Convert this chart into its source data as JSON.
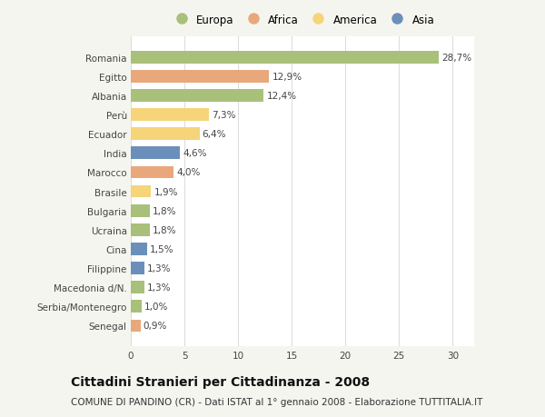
{
  "countries": [
    "Romania",
    "Egitto",
    "Albania",
    "Perù",
    "Ecuador",
    "India",
    "Marocco",
    "Brasile",
    "Bulgaria",
    "Ucraina",
    "Cina",
    "Filippine",
    "Macedonia d/N.",
    "Serbia/Montenegro",
    "Senegal"
  ],
  "values": [
    28.7,
    12.9,
    12.4,
    7.3,
    6.4,
    4.6,
    4.0,
    1.9,
    1.8,
    1.8,
    1.5,
    1.3,
    1.3,
    1.0,
    0.9
  ],
  "labels": [
    "28,7%",
    "12,9%",
    "12,4%",
    "7,3%",
    "6,4%",
    "4,6%",
    "4,0%",
    "1,9%",
    "1,8%",
    "1,8%",
    "1,5%",
    "1,3%",
    "1,3%",
    "1,0%",
    "0,9%"
  ],
  "continents": [
    "Europa",
    "Africa",
    "Europa",
    "America",
    "America",
    "Asia",
    "Africa",
    "America",
    "Europa",
    "Europa",
    "Asia",
    "Asia",
    "Europa",
    "Europa",
    "Africa"
  ],
  "continent_colors": {
    "Europa": "#a8c07a",
    "Africa": "#e8a87c",
    "America": "#f5d47a",
    "Asia": "#6b8fbb"
  },
  "legend_order": [
    "Europa",
    "Africa",
    "America",
    "Asia"
  ],
  "title": "Cittadini Stranieri per Cittadinanza - 2008",
  "subtitle": "COMUNE DI PANDINO (CR) - Dati ISTAT al 1° gennaio 2008 - Elaborazione TUTTITALIA.IT",
  "xlim": [
    0,
    32
  ],
  "xticks": [
    0,
    5,
    10,
    15,
    20,
    25,
    30
  ],
  "background_color": "#f5f5f0",
  "plot_background": "#ffffff",
  "grid_color": "#dddddd",
  "bar_height": 0.65,
  "label_fontsize": 7.5,
  "tick_fontsize": 7.5,
  "title_fontsize": 10,
  "subtitle_fontsize": 7.5
}
